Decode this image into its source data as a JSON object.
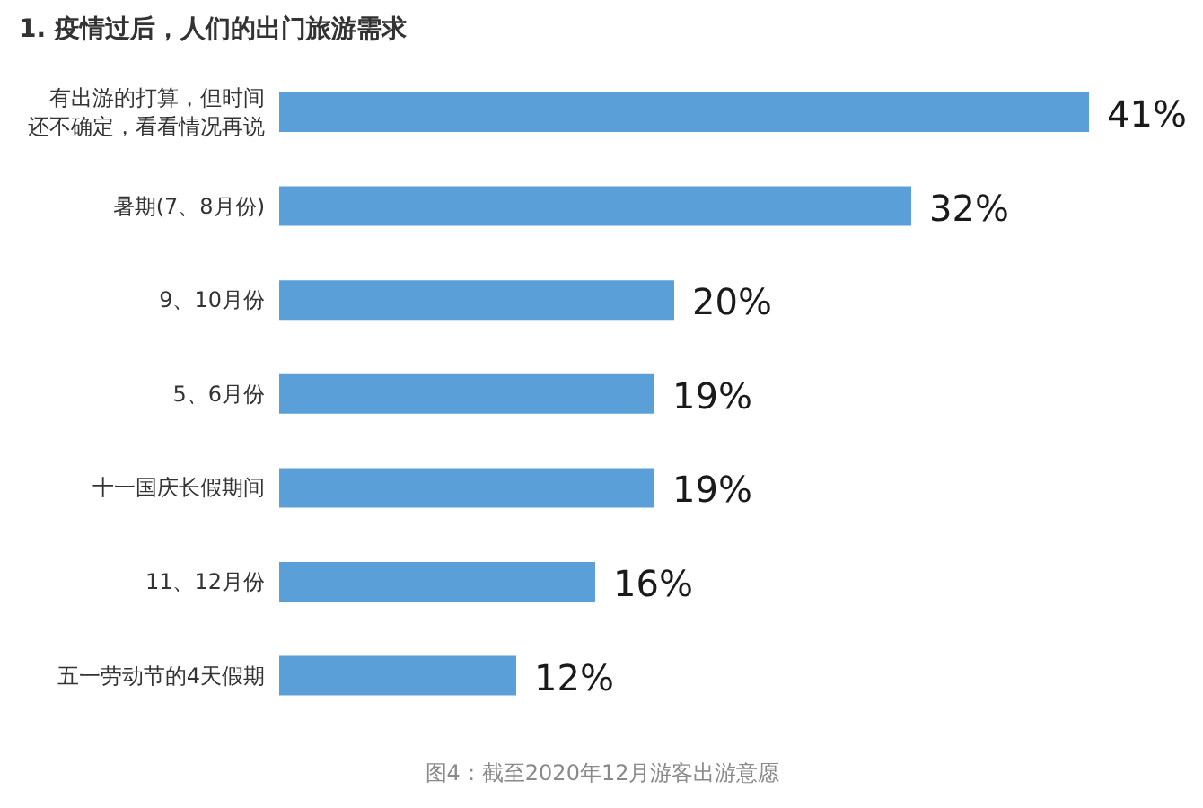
{
  "chart_data": {
    "type": "bar",
    "orientation": "horizontal",
    "title": "1. 疫情过后，人们的出门旅游需求",
    "categories": [
      "有出游的打算，但时间还不确定，看看情况再说",
      "暑期(7、8月份)",
      "9、10月份",
      "5、6月份",
      "十一国庆长假期间",
      "11、12月份",
      "五一劳动节的4天假期"
    ],
    "values": [
      41,
      32,
      20,
      19,
      19,
      16,
      12
    ],
    "value_labels": [
      "41%",
      "32%",
      "20%",
      "19%",
      "19%",
      "16%",
      "12%"
    ],
    "color": "#5b9fd8",
    "annotations": [
      "图4：截至2020年12月游客出游意愿"
    ]
  }
}
